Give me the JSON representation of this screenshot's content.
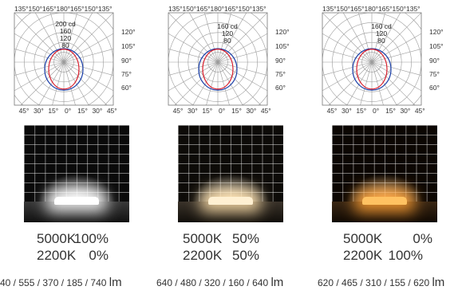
{
  "polar_common": {
    "top_angles": [
      "135°",
      "150°",
      "165°",
      "180°",
      "165°",
      "150°",
      "135°"
    ],
    "bottom_angles": [
      "45°",
      "30°",
      "15°",
      "0°",
      "15°",
      "30°",
      "45°"
    ],
    "right_angles": [
      "120°",
      "105°",
      "90°",
      "75°",
      "60°"
    ]
  },
  "panels": [
    {
      "cd_unit_label": "200 cd",
      "cd_ticks": [
        "160",
        "120",
        "80"
      ],
      "max_cd": 200,
      "warm_color": "#ffffff",
      "line1_k": "5000K",
      "line1_v": "100%",
      "line2_k": "2200K",
      "line2_v": "0%",
      "lumen_values": "40 / 555 / 370 / 185 / 740",
      "lumen_unit": "lm"
    },
    {
      "cd_unit_label": "160 cd",
      "cd_ticks": [
        "120",
        "80"
      ],
      "max_cd": 160,
      "warm_color": "#ffe6b8",
      "line1_k": "5000K",
      "line1_v": "50%",
      "line2_k": "2200K",
      "line2_v": "50%",
      "lumen_values": "640 / 480 / 320 / 160 / 640",
      "lumen_unit": "lm"
    },
    {
      "cd_unit_label": "160 cd",
      "cd_ticks": [
        "120",
        "80"
      ],
      "max_cd": 160,
      "warm_color": "#ffb24a",
      "line1_k": "5000K",
      "line1_v": "0%",
      "line2_k": "2200K",
      "line2_v": "100%",
      "lumen_values": "620 / 465 / 310 / 155 / 620",
      "lumen_unit": "lm"
    }
  ],
  "colors": {
    "curve_c0": "#d81e2c",
    "curve_c90": "#1a3fa8",
    "grid": "#9a9a9a"
  }
}
